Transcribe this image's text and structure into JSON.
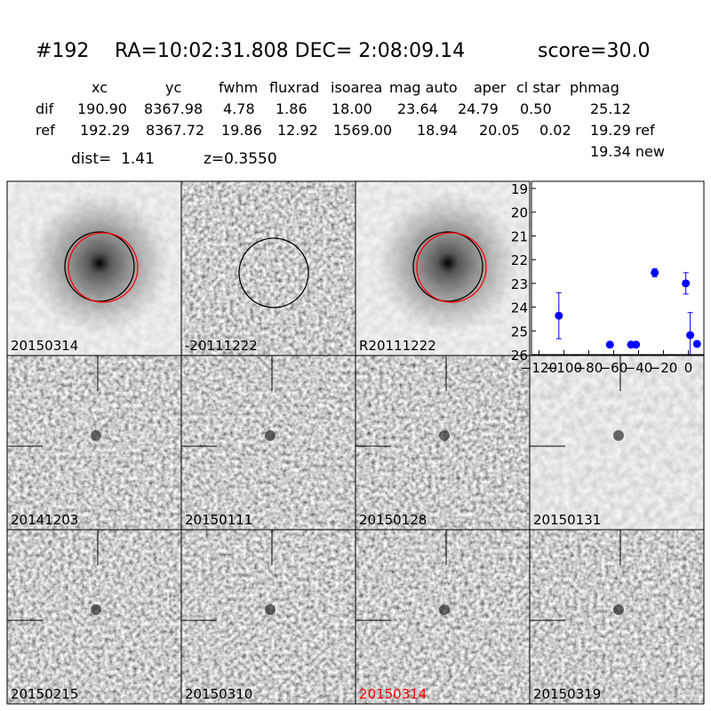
{
  "header": {
    "id": "#192",
    "coords": "RA=10:02:31.808 DEC= 2:08:09.14",
    "score": "score=30.0"
  },
  "table": {
    "columns": [
      "xc",
      "yc",
      "fwhm",
      "fluxrad",
      "isoarea",
      "mag auto",
      "aper",
      "cl star",
      "phmag"
    ],
    "rows": [
      [
        "dif",
        "190.90",
        "8367.98",
        "4.78",
        "1.86",
        "18.00",
        "23.64",
        "24.79",
        "0.50",
        "25.12"
      ],
      [
        "ref",
        "192.29",
        "8367.72",
        "19.86",
        "12.92",
        "1569.00",
        "18.94",
        "20.05",
        "0.02",
        "19.29 ref"
      ]
    ],
    "extra": "19.34 new"
  },
  "dist": "dist=  1.41",
  "redshift": "z=0.3550",
  "panels": [
    "20150314",
    "-20111222",
    "R20111222",
    "20141203",
    "20150111",
    "20150128",
    "20150131",
    "20150215",
    "20150310",
    "20150314",
    "20150319"
  ],
  "highlight_panel": 9,
  "highlight_color": "#ff0000",
  "chart_data": {
    "type": "scatter",
    "color": "#0000ff",
    "x": [
      -104,
      -63,
      -46,
      -42,
      -27,
      -2,
      1.5,
      7
    ],
    "values": [
      24.36,
      25.58,
      25.58,
      25.58,
      22.55,
      23.0,
      25.18,
      25.55
    ],
    "errors": [
      0.97,
      null,
      null,
      null,
      0.17,
      0.45,
      0.95,
      0.1
    ],
    "xlim": [
      -126,
      12.5
    ],
    "ylim": [
      26,
      18.7
    ],
    "xticks": [
      {
        "value": -120,
        "label": "−120"
      },
      {
        "value": -100,
        "label": "−100"
      },
      {
        "value": -80,
        "label": "−80"
      },
      {
        "value": -60,
        "label": "−60"
      },
      {
        "value": -40,
        "label": "−40"
      },
      {
        "value": -20,
        "label": "−20"
      },
      0
    ],
    "yticks": [
      19,
      20,
      21,
      22,
      23,
      24,
      25,
      26
    ]
  }
}
